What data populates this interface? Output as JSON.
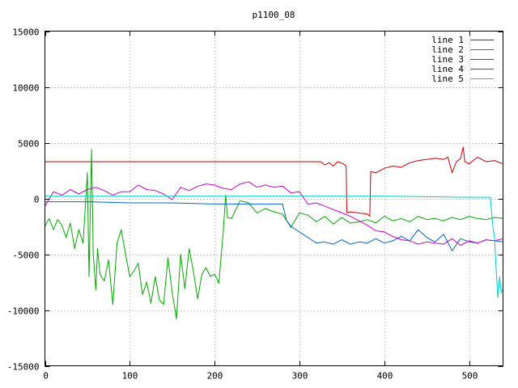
{
  "chart_data": {
    "type": "line",
    "title": "p1100_08",
    "xlabel": "",
    "ylabel": "",
    "xlim": [
      0,
      540
    ],
    "ylim": [
      -15000,
      15000
    ],
    "xticks": [
      0,
      100,
      200,
      300,
      400,
      500
    ],
    "yticks": [
      -15000,
      -10000,
      -5000,
      0,
      5000,
      10000,
      15000
    ],
    "x_tick_labels": [
      "0",
      "100",
      "200",
      "300",
      "400",
      "500"
    ],
    "y_tick_labels": [
      "-15000",
      "-10000",
      "-5000",
      "0",
      "5000",
      "10000",
      "15000"
    ],
    "grid": true,
    "legend_position": "top-right",
    "series": [
      {
        "name": "line 1",
        "color": "#cc0000",
        "x": [
          0,
          100,
          200,
          300,
          325,
          330,
          335,
          340,
          345,
          352,
          355,
          356,
          360,
          370,
          380,
          383,
          384,
          390,
          400,
          410,
          420,
          430,
          440,
          450,
          460,
          470,
          475,
          480,
          485,
          490,
          493,
          495,
          500,
          510,
          520,
          530,
          540
        ],
        "y": [
          3300,
          3300,
          3300,
          3300,
          3300,
          3000,
          3200,
          2900,
          3300,
          3100,
          2900,
          -1300,
          -1200,
          -1300,
          -1400,
          -1600,
          2400,
          2300,
          2700,
          2900,
          2800,
          3200,
          3400,
          3500,
          3600,
          3500,
          3700,
          2300,
          3300,
          3600,
          4600,
          3300,
          3100,
          3700,
          3300,
          3400,
          3100
        ]
      },
      {
        "name": "line 2",
        "color": "#00aa00",
        "x": [
          0,
          5,
          10,
          15,
          20,
          25,
          30,
          35,
          40,
          45,
          50,
          52,
          55,
          57,
          60,
          62,
          65,
          70,
          75,
          80,
          85,
          90,
          95,
          100,
          105,
          110,
          115,
          120,
          125,
          130,
          135,
          140,
          145,
          150,
          155,
          160,
          165,
          170,
          175,
          180,
          185,
          190,
          195,
          200,
          205,
          210,
          213,
          215,
          220,
          230,
          240,
          250,
          260,
          270,
          280,
          290,
          300,
          310,
          320,
          330,
          340,
          350,
          360,
          370,
          380,
          390,
          400,
          410,
          420,
          430,
          440,
          450,
          460,
          470,
          480,
          490,
          500,
          510,
          520,
          530,
          540
        ],
        "y": [
          -2500,
          -1800,
          -2800,
          -1900,
          -2400,
          -3500,
          -2200,
          -4500,
          -2800,
          -4000,
          2300,
          -7000,
          4400,
          -5000,
          -8200,
          -4500,
          -6800,
          -7400,
          -5500,
          -9500,
          -4000,
          -2800,
          -5000,
          -7000,
          -6500,
          -5800,
          -8600,
          -7500,
          -9400,
          -7000,
          -9100,
          -9500,
          -5300,
          -8400,
          -10800,
          -5000,
          -8100,
          -4500,
          -6500,
          -9000,
          -6800,
          -6200,
          -7000,
          -6800,
          -7600,
          -3200,
          300,
          -1700,
          -1800,
          -200,
          -400,
          -1300,
          -900,
          -1200,
          -1400,
          -2600,
          -1300,
          -1500,
          -2100,
          -1600,
          -2300,
          -1700,
          -2200,
          -2100,
          -1900,
          -2200,
          -1600,
          -2000,
          -1800,
          -2100,
          -1600,
          -1900,
          -1800,
          -2000,
          -1700,
          -1900,
          -1600,
          -1800,
          -1900,
          -1700,
          -1800
        ]
      },
      {
        "name": "line 3",
        "color": "#0066cc",
        "x": [
          0,
          50,
          100,
          150,
          200,
          250,
          280,
          285,
          290,
          300,
          310,
          320,
          330,
          340,
          350,
          360,
          370,
          380,
          390,
          400,
          410,
          420,
          430,
          440,
          450,
          460,
          470,
          480,
          490,
          500,
          510,
          520,
          530,
          540
        ],
        "y": [
          -300,
          -300,
          -400,
          -400,
          -500,
          -500,
          -500,
          -2000,
          -2500,
          -3000,
          -3500,
          -4000,
          -3900,
          -4100,
          -3700,
          -4100,
          -3900,
          -4000,
          -3600,
          -4000,
          -3800,
          -3400,
          -3800,
          -2800,
          -3500,
          -3900,
          -3200,
          -4700,
          -3600,
          -3900,
          -4000,
          -3700,
          -3800,
          -3900
        ]
      },
      {
        "name": "line 4",
        "color": "#cc00cc",
        "x": [
          0,
          10,
          20,
          30,
          40,
          50,
          60,
          70,
          80,
          90,
          100,
          110,
          120,
          130,
          140,
          150,
          160,
          170,
          180,
          190,
          200,
          210,
          220,
          230,
          240,
          250,
          260,
          270,
          280,
          290,
          300,
          310,
          320,
          330,
          340,
          350,
          360,
          370,
          380,
          390,
          400,
          410,
          420,
          430,
          440,
          450,
          460,
          470,
          480,
          490,
          500,
          510,
          520,
          530,
          540
        ],
        "y": [
          -700,
          600,
          300,
          800,
          400,
          800,
          1000,
          700,
          300,
          600,
          600,
          1200,
          800,
          700,
          400,
          -100,
          1000,
          700,
          1100,
          1300,
          1200,
          900,
          800,
          1300,
          1500,
          1000,
          1200,
          1000,
          1100,
          500,
          600,
          -500,
          -400,
          -700,
          -1000,
          -1300,
          -1600,
          -2000,
          -2400,
          -2900,
          -3000,
          -3400,
          -3700,
          -3800,
          -4100,
          -3900,
          -4000,
          -4100,
          -3600,
          -4200,
          -3800,
          -4000,
          -3700,
          -3800,
          -3600
        ]
      },
      {
        "name": "line 5",
        "color": "#00cccc",
        "x": [
          0,
          100,
          200,
          300,
          400,
          500,
          525,
          528,
          530,
          532,
          534,
          536,
          538,
          540
        ],
        "y": [
          200,
          200,
          200,
          200,
          200,
          100,
          100,
          -2500,
          -3500,
          -6500,
          -8900,
          -7000,
          -8500,
          -8000
        ]
      }
    ]
  }
}
